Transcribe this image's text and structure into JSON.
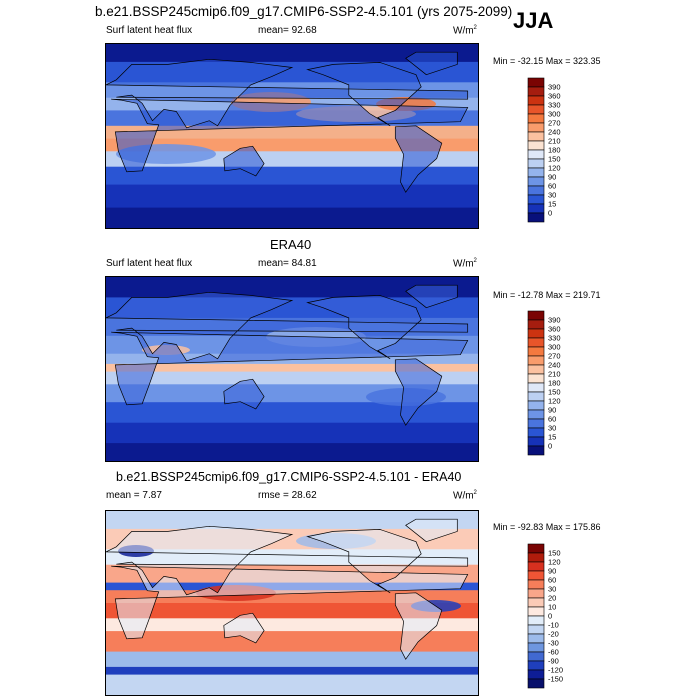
{
  "season": "JJA",
  "panels": [
    {
      "id": "model",
      "title": "b.e21.BSSP245cmip6.f09_g17.CMIP6-SSP2-4.5.101 (yrs 2075-2099)",
      "left_label": "Surf latent heat flux",
      "center_label": "mean=  92.68",
      "units": "W/m",
      "units_sup": "2",
      "minmax": "Min = -32.15 Max = 323.35",
      "colorbar": {
        "labels": [
          "390",
          "360",
          "330",
          "300",
          "270",
          "240",
          "210",
          "180",
          "150",
          "120",
          "90",
          "60",
          "30",
          "15",
          "0"
        ],
        "colors": [
          "#7a0403",
          "#a51d0f",
          "#cc3311",
          "#e8552a",
          "#f4793f",
          "#f99c6c",
          "#fbc1a0",
          "#fbe3d2",
          "#dfe8f8",
          "#bcd0f2",
          "#94b3ec",
          "#6d94e6",
          "#4a74de",
          "#2a55d4",
          "#1632b8",
          "#08107a"
        ]
      }
    },
    {
      "id": "obs",
      "title": "ERA40",
      "left_label": "Surf latent heat flux",
      "center_label": "mean=  84.81",
      "units": "W/m",
      "units_sup": "2",
      "minmax": "Min = -12.78 Max = 219.71",
      "colorbar": {
        "labels": [
          "390",
          "360",
          "330",
          "300",
          "270",
          "240",
          "210",
          "180",
          "150",
          "120",
          "90",
          "60",
          "30",
          "15",
          "0"
        ],
        "colors": [
          "#7a0403",
          "#a51d0f",
          "#cc3311",
          "#e8552a",
          "#f4793f",
          "#f99c6c",
          "#fbc1a0",
          "#fbe3d2",
          "#dfe8f8",
          "#bcd0f2",
          "#94b3ec",
          "#6d94e6",
          "#4a74de",
          "#2a55d4",
          "#1632b8",
          "#08107a"
        ]
      }
    },
    {
      "id": "diff",
      "title": "b.e21.BSSP245cmip6.f09_g17.CMIP6-SSP2-4.5.101 - ERA40",
      "left_label": "mean =   7.87",
      "center_label": "rmse =  28.62",
      "units": "W/m",
      "units_sup": "2",
      "minmax": "Min = -92.83 Max = 175.86",
      "colorbar": {
        "labels": [
          "150",
          "120",
          "90",
          "60",
          "30",
          "20",
          "10",
          "0",
          "-10",
          "-20",
          "-30",
          "-60",
          "-90",
          "-120",
          "-150"
        ],
        "colors": [
          "#7a0403",
          "#b01c0c",
          "#d7301f",
          "#ef5535",
          "#f67e5a",
          "#f9a68a",
          "#fbcbb7",
          "#fde9e0",
          "#e2edf9",
          "#c3d6f2",
          "#9dbbea",
          "#6e96df",
          "#4169d1",
          "#1f3fbd",
          "#0e1d96",
          "#08106b"
        ]
      }
    }
  ]
}
